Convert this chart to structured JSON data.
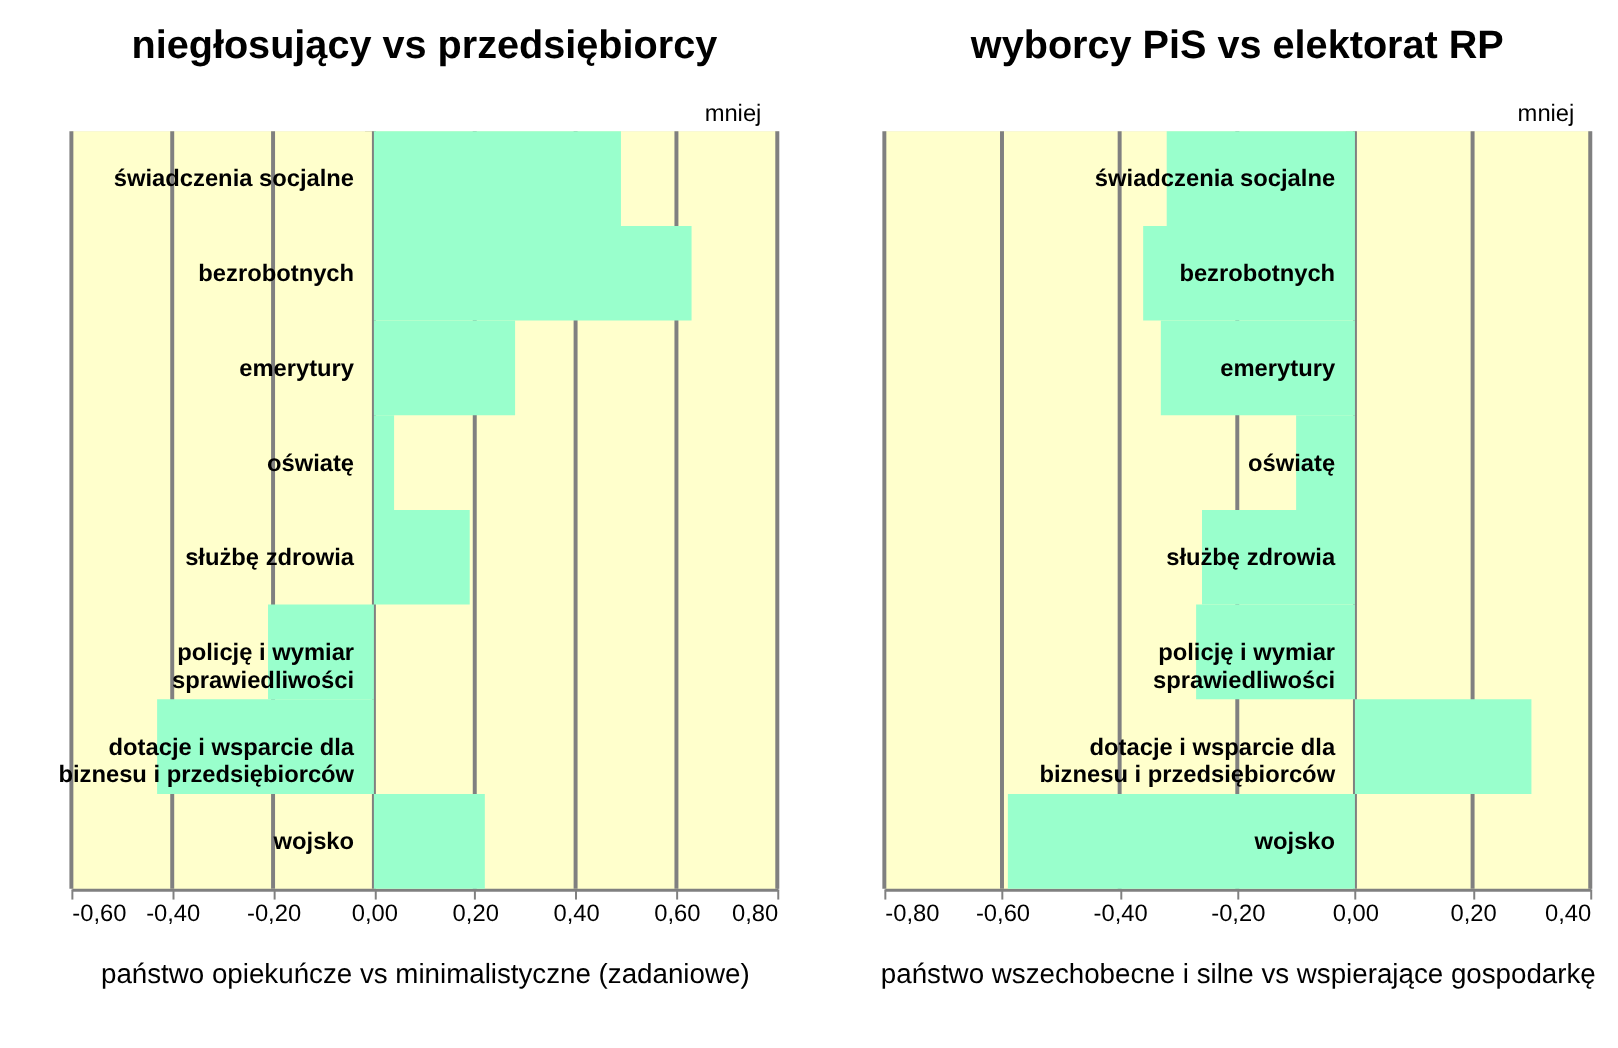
{
  "chart_data": [
    {
      "type": "bar",
      "orientation": "horizontal",
      "title": "niegłosujący vs przedsiębiorcy",
      "xlabel": "państwo opiekuńcze vs minimalistyczne (zadaniowe)",
      "annotations": [
        "mniej"
      ],
      "categories": [
        "świadczenia socjalne",
        "bezrobotnych",
        "emerytury",
        "oświatę",
        "służbę zdrowia",
        "policję i wymiar\nsprawiedliwości",
        "dotacje i wsparcie dla\nbiznesu i przedsiębiorców",
        "wojsko"
      ],
      "values": [
        0.49,
        0.63,
        0.28,
        0.04,
        0.19,
        -0.21,
        -0.43,
        0.22
      ],
      "color": "#99ffcc",
      "xlim": [
        -0.6,
        0.8
      ],
      "xticks": [
        {
          "value": -0.6,
          "label": "-0,60"
        },
        {
          "value": -0.4,
          "label": "-0,40"
        },
        {
          "value": -0.2,
          "label": "-0,20"
        },
        {
          "value": 0,
          "label": "0,00"
        },
        {
          "value": 0.2,
          "label": "0,20"
        },
        {
          "value": 0.4,
          "label": "0,40"
        },
        {
          "value": 0.6,
          "label": "0,60"
        },
        {
          "value": 0.8,
          "label": "0,80"
        }
      ],
      "grid": "x"
    },
    {
      "type": "bar",
      "orientation": "horizontal",
      "title": "wyborcy PiS vs elektorat RP",
      "xlabel": "państwo wszechobecne i silne vs wspierające gospodarkę",
      "annotations": [
        "mniej"
      ],
      "categories": [
        "świadczenia socjalne",
        "bezrobotnych",
        "emerytury",
        "oświatę",
        "służbę zdrowia",
        "policję i wymiar\nsprawiedliwości",
        "dotacje i wsparcie dla\nbiznesu i przedsiębiorców",
        "wojsko"
      ],
      "values": [
        -0.32,
        -0.36,
        -0.33,
        -0.1,
        -0.26,
        -0.27,
        0.3,
        -0.59
      ],
      "color": "#99ffcc",
      "xlim": [
        -0.8,
        0.4
      ],
      "xticks": [
        {
          "value": -0.8,
          "label": "-0,80"
        },
        {
          "value": -0.6,
          "label": "-0,60"
        },
        {
          "value": -0.4,
          "label": "-0,40"
        },
        {
          "value": -0.2,
          "label": "-0,20"
        },
        {
          "value": 0,
          "label": "0,00"
        },
        {
          "value": 0.2,
          "label": "0,20"
        },
        {
          "value": 0.4,
          "label": "0,40"
        }
      ],
      "grid": "x"
    }
  ]
}
